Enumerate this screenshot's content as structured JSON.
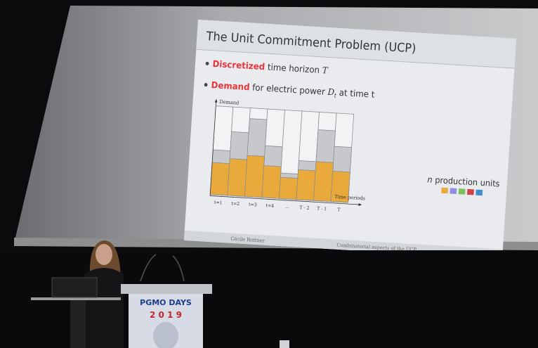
{
  "slide": {
    "title": "The Unit Commitment Problem (UCP)",
    "bullets": [
      {
        "highlight": "Discretized",
        "text": " time horizon ",
        "math": "T"
      },
      {
        "highlight": "Demand",
        "text": " for electric power ",
        "math": "D",
        "subscript": "t",
        "tail": " at time t"
      }
    ],
    "diagram": {
      "y_axis_label": "Demand",
      "x_axis_label": "Time periods",
      "periods": [
        "t=1",
        "t=2",
        "t=3",
        "t=4",
        "...",
        "T - 2",
        "T - 1",
        "T"
      ],
      "legend_var": "n",
      "legend_text": "production units"
    },
    "footer": {
      "author": "Cécile Rottner",
      "talk": "Combinatorial aspects of the UCP"
    }
  },
  "podium": {
    "line1": "PGMO DAYS",
    "line2": "2 0 1 9"
  }
}
